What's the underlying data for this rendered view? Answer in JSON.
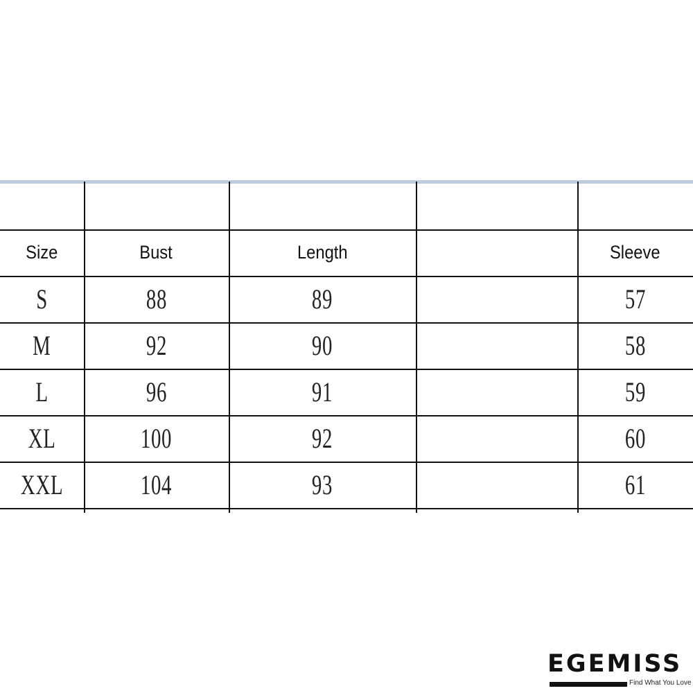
{
  "table": {
    "headers": [
      "Size",
      "Bust",
      "Length",
      "",
      "Sleeve"
    ],
    "rows": [
      [
        "S",
        "88",
        "89",
        "",
        "57"
      ],
      [
        "M",
        "92",
        "90",
        "",
        "58"
      ],
      [
        "L",
        "96",
        "91",
        "",
        "59"
      ],
      [
        "XL",
        "100",
        "92",
        "",
        "60"
      ],
      [
        "XXL",
        "104",
        "93",
        "",
        "61"
      ]
    ]
  },
  "logo": {
    "name": "EGEMISS",
    "tagline": "Find What You Love"
  }
}
